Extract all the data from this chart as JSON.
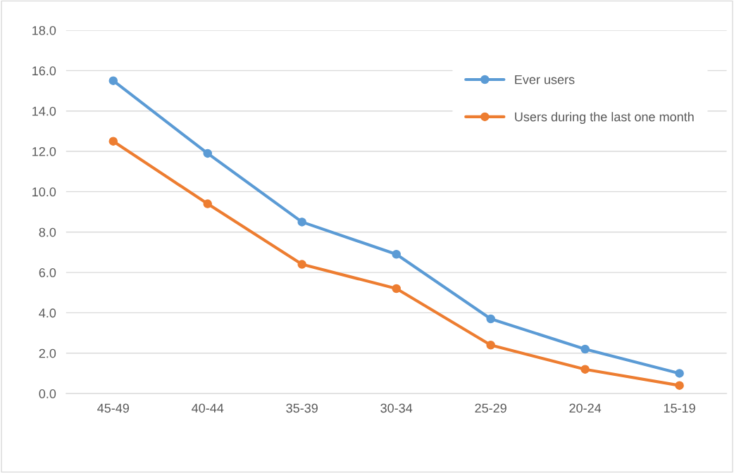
{
  "chart_data": {
    "type": "line",
    "categories": [
      "45-49",
      "40-44",
      "35-39",
      "30-34",
      "25-29",
      "20-24",
      "15-19"
    ],
    "series": [
      {
        "name": "Ever users",
        "color": "#5b9bd5",
        "values": [
          15.5,
          11.9,
          8.5,
          6.9,
          3.7,
          2.2,
          1.0
        ]
      },
      {
        "name": "Users during the last one month",
        "color": "#ed7d31",
        "values": [
          12.5,
          9.4,
          6.4,
          5.2,
          2.4,
          1.2,
          0.4
        ]
      }
    ],
    "ylim": [
      0,
      18
    ],
    "yticks": [
      {
        "value": 0,
        "label": "0.0"
      },
      {
        "value": 2,
        "label": "2.0"
      },
      {
        "value": 4,
        "label": "4.0"
      },
      {
        "value": 6,
        "label": "6.0"
      },
      {
        "value": 8,
        "label": "8.0"
      },
      {
        "value": 10,
        "label": "10.0"
      },
      {
        "value": 12,
        "label": "12.0"
      },
      {
        "value": 14,
        "label": "14.0"
      },
      {
        "value": 16,
        "label": "16.0"
      },
      {
        "value": 18,
        "label": "18.0"
      }
    ],
    "grid": "y",
    "legend": "top right",
    "marker": "circle",
    "line_style": "solid"
  }
}
